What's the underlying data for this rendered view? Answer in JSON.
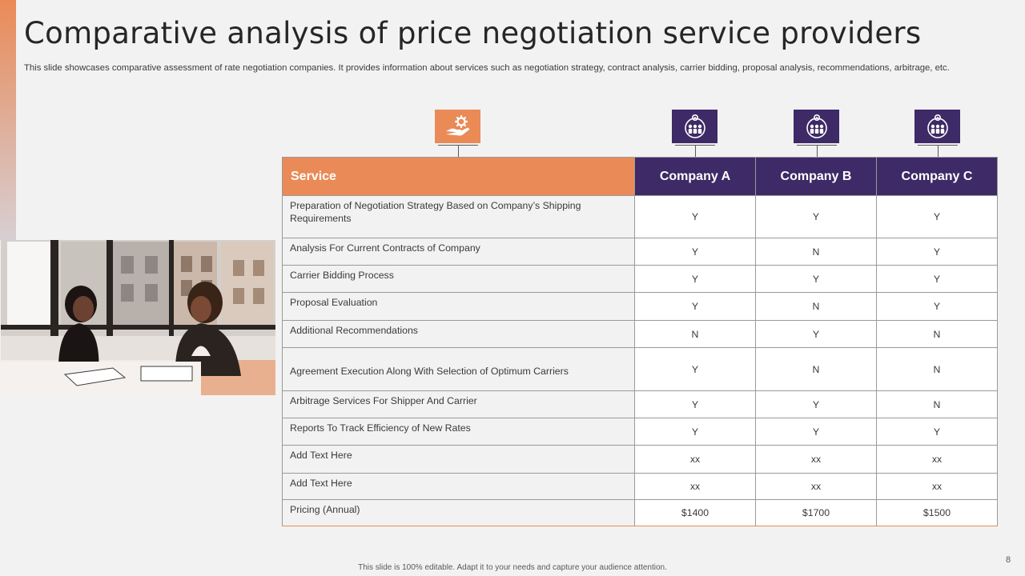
{
  "title": "Comparative analysis of price negotiation service providers",
  "subtitle": "This slide showcases comparative assessment of rate negotiation companies. It provides information about services such as negotiation strategy, contract analysis, carrier bidding, proposal analysis, recommendations, arbitrage, etc.",
  "colors": {
    "accent": "#ea8a57",
    "header_purple": "#3d2a66",
    "background": "#f2f2f2"
  },
  "icons": {
    "service": "hand-gear-icon",
    "company_a": "team-globe-gear-icon",
    "company_b": "team-globe-gear-icon",
    "company_c": "team-globe-gear-icon"
  },
  "table": {
    "header": {
      "service": "Service",
      "company_a": "Company A",
      "company_b": "Company B",
      "company_c": "Company C"
    },
    "rows": [
      {
        "service": "Preparation of Negotiation Strategy Based on Company’s Shipping Requirements",
        "a": "Y",
        "b": "Y",
        "c": "Y"
      },
      {
        "service": "Analysis For Current Contracts of Company",
        "a": "Y",
        "b": "N",
        "c": "Y"
      },
      {
        "service": "Carrier Bidding Process",
        "a": "Y",
        "b": "Y",
        "c": "Y"
      },
      {
        "service": "Proposal Evaluation",
        "a": "Y",
        "b": "N",
        "c": "Y"
      },
      {
        "service": "Additional Recommendations",
        "a": "N",
        "b": "Y",
        "c": "N"
      },
      {
        "service": "Agreement Execution Along With Selection of Optimum Carriers",
        "a": "Y",
        "b": "N",
        "c": "N"
      },
      {
        "service": "Arbitrage Services For Shipper And Carrier",
        "a": "Y",
        "b": "Y",
        "c": "N"
      },
      {
        "service": "Reports To Track Efficiency of New Rates",
        "a": "Y",
        "b": "Y",
        "c": "Y"
      },
      {
        "service": "Add Text Here",
        "a": "xx",
        "b": "xx",
        "c": "xx"
      },
      {
        "service": "Add Text Here",
        "a": "xx",
        "b": "xx",
        "c": "xx"
      },
      {
        "service": "Pricing (Annual)",
        "a": "$1400",
        "b": "$1700",
        "c": "$1500"
      }
    ]
  },
  "footer": "This slide is 100% editable. Adapt it to your needs and capture your audience attention.",
  "page_number": "8"
}
